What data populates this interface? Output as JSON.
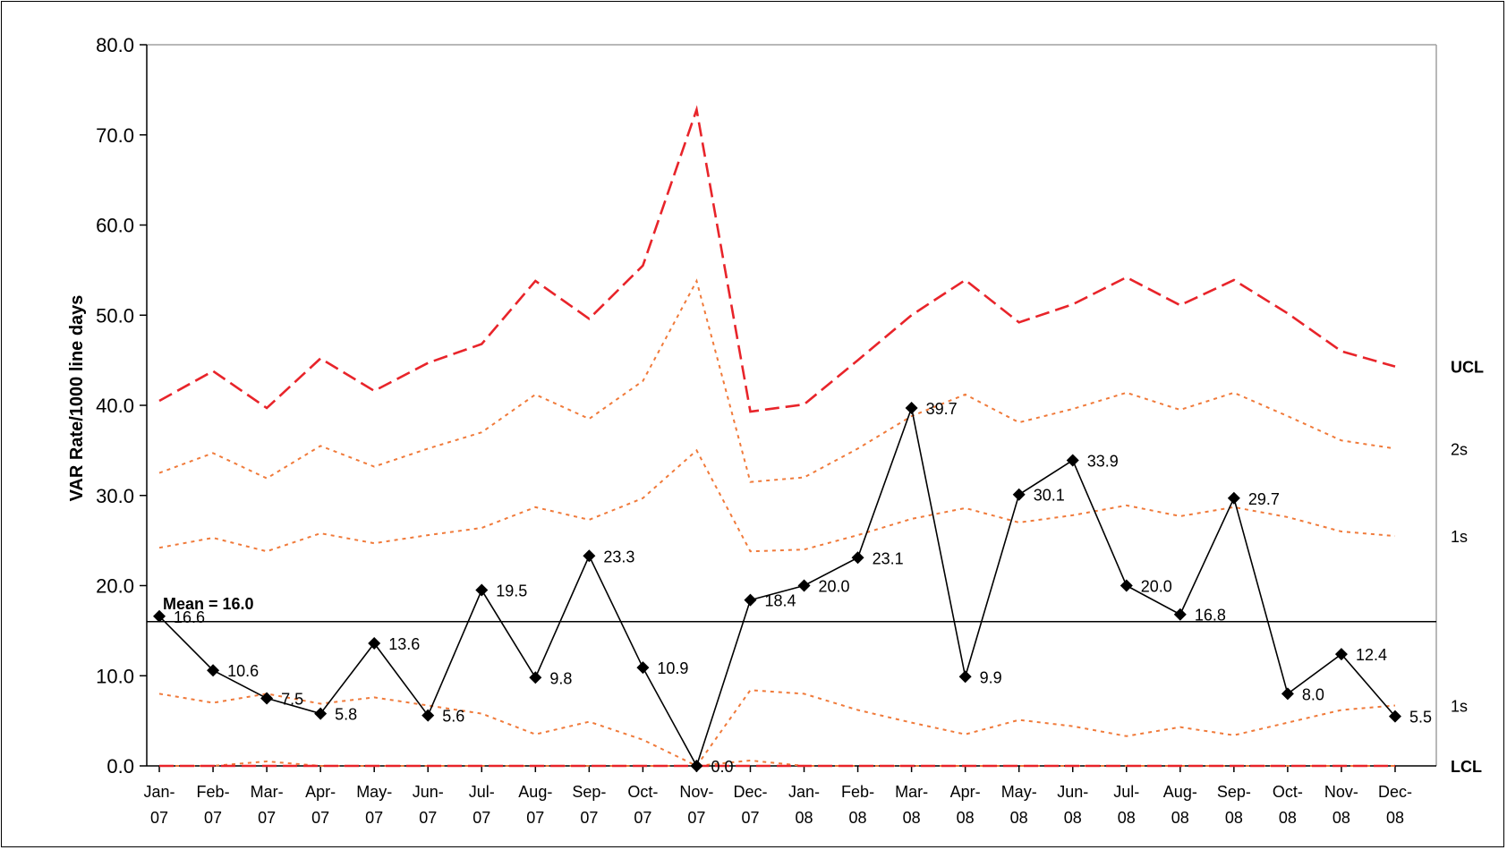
{
  "chart_data": {
    "type": "line",
    "title": "",
    "xlabel": "",
    "ylabel": "VAR Rate/1000 line days",
    "ylim": [
      0,
      80
    ],
    "yticks": [
      "0.0",
      "10.0",
      "20.0",
      "30.0",
      "40.0",
      "50.0",
      "60.0",
      "70.0",
      "80.0"
    ],
    "grid": false,
    "categories": [
      "Jan-07",
      "Feb-07",
      "Mar-07",
      "Apr-07",
      "May-07",
      "Jun-07",
      "Jul-07",
      "Aug-07",
      "Sep-07",
      "Oct-07",
      "Nov-07",
      "Dec-07",
      "Jan-08",
      "Feb-08",
      "Mar-08",
      "Apr-08",
      "May-08",
      "Jun-08",
      "Jul-08",
      "Aug-08",
      "Sep-08",
      "Oct-08",
      "Nov-08",
      "Dec-08"
    ],
    "category_lines": [
      [
        "Jan-",
        "07"
      ],
      [
        "Feb-",
        "07"
      ],
      [
        "Mar-",
        "07"
      ],
      [
        "Apr-",
        "07"
      ],
      [
        "May-",
        "07"
      ],
      [
        "Jun-",
        "07"
      ],
      [
        "Jul-",
        "07"
      ],
      [
        "Aug-",
        "07"
      ],
      [
        "Sep-",
        "07"
      ],
      [
        "Oct-",
        "07"
      ],
      [
        "Nov-",
        "07"
      ],
      [
        "Dec-",
        "07"
      ],
      [
        "Jan-",
        "08"
      ],
      [
        "Feb-",
        "08"
      ],
      [
        "Mar-",
        "08"
      ],
      [
        "Apr-",
        "08"
      ],
      [
        "May-",
        "08"
      ],
      [
        "Jun-",
        "08"
      ],
      [
        "Jul-",
        "08"
      ],
      [
        "Aug-",
        "08"
      ],
      [
        "Sep-",
        "08"
      ],
      [
        "Oct-",
        "08"
      ],
      [
        "Nov-",
        "08"
      ],
      [
        "Dec-",
        "08"
      ]
    ],
    "mean": 16.0,
    "mean_label": "Mean =  16.0",
    "series": [
      {
        "name": "",
        "role": "rate",
        "color": "#000000",
        "values": [
          16.6,
          10.6,
          7.5,
          5.8,
          13.6,
          5.6,
          19.5,
          9.8,
          23.3,
          10.9,
          0.0,
          18.4,
          20.0,
          23.1,
          39.7,
          9.9,
          30.1,
          33.9,
          20.0,
          16.8,
          29.7,
          8.0,
          12.4,
          5.5
        ],
        "labels": [
          "16.6",
          "10.6",
          "7.5",
          "5.8",
          "13.6",
          "5.6",
          "19.5",
          "9.8",
          "23.3",
          "10.9",
          "0.0",
          "18.4",
          "20.0",
          "23.1",
          "39.7",
          "9.9",
          "30.1",
          "33.9",
          "20.0",
          "16.8",
          "29.7",
          "8.0",
          "12.4",
          "5.5"
        ]
      },
      {
        "name": "UCL",
        "role": "ucl",
        "color": "#e8242a",
        "values": [
          40.5,
          43.8,
          39.7,
          45.2,
          41.6,
          44.7,
          46.8,
          53.8,
          49.6,
          55.5,
          72.8,
          39.3,
          40.1,
          45.0,
          50.0,
          53.9,
          49.2,
          51.2,
          54.2,
          51.1,
          53.9,
          50.2,
          46.0,
          44.3
        ]
      },
      {
        "name": "2s",
        "role": "upper2s",
        "color": "#f07a3a",
        "values": [
          32.5,
          34.7,
          31.9,
          35.5,
          33.2,
          35.2,
          37.0,
          41.2,
          38.5,
          42.7,
          53.8,
          31.5,
          32.0,
          35.2,
          38.8,
          41.2,
          38.1,
          39.6,
          41.4,
          39.5,
          41.4,
          38.8,
          36.1,
          35.2
        ]
      },
      {
        "name": "1s",
        "role": "upper1s",
        "color": "#f07a3a",
        "values": [
          24.2,
          25.3,
          23.8,
          25.8,
          24.7,
          25.6,
          26.4,
          28.7,
          27.3,
          29.7,
          35.0,
          23.8,
          24.0,
          25.6,
          27.4,
          28.6,
          27.0,
          27.8,
          28.9,
          27.7,
          28.7,
          27.6,
          26.0,
          25.5
        ]
      },
      {
        "name": "1s",
        "role": "lower1s",
        "color": "#f07a3a",
        "values": [
          8.0,
          7.0,
          8.0,
          6.9,
          7.6,
          6.7,
          5.8,
          3.5,
          4.9,
          2.9,
          0.0,
          8.4,
          8.0,
          6.2,
          4.8,
          3.5,
          5.1,
          4.4,
          3.3,
          4.3,
          3.4,
          4.8,
          6.2,
          6.7
        ]
      },
      {
        "name": "",
        "role": "lower2s",
        "color": "#f07a3a",
        "values": [
          0.0,
          0.0,
          0.5,
          0.0,
          0.0,
          0.0,
          0.0,
          0.0,
          0.0,
          0.0,
          0.0,
          0.6,
          0.0,
          0.0,
          0.0,
          0.0,
          0.0,
          0.0,
          0.0,
          0.0,
          0.0,
          0.0,
          0.0,
          0.0
        ]
      },
      {
        "name": "LCL",
        "role": "lcl",
        "color": "#e8242a",
        "values": [
          0,
          0,
          0,
          0,
          0,
          0,
          0,
          0,
          0,
          0,
          0,
          0,
          0,
          0,
          0,
          0,
          0,
          0,
          0,
          0,
          0,
          0,
          0,
          0
        ]
      }
    ]
  }
}
